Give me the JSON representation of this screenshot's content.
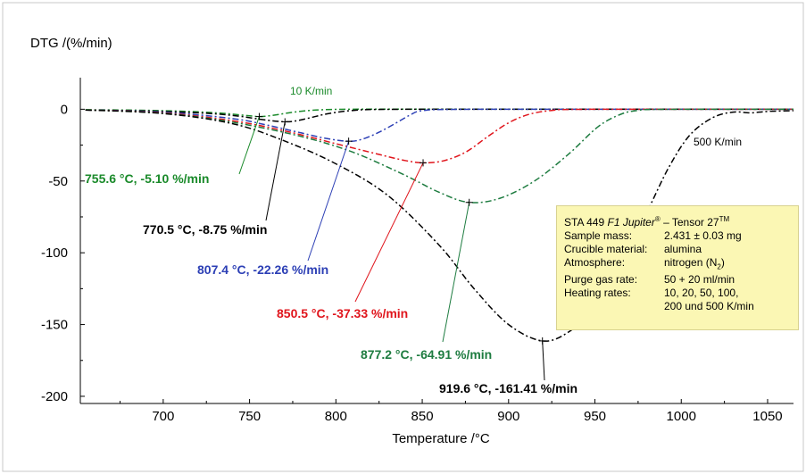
{
  "colors": {
    "black": "#000000",
    "green": "#1a8a2a",
    "blue": "#2c3fb5",
    "red": "#e0151c",
    "teal": "#1e7c40",
    "box_bg": "#fbf7b4"
  },
  "chart_data": {
    "type": "line",
    "title": "",
    "ylabel": "DTG /(%/min)",
    "xlabel": "Temperature /°C",
    "xlim": [
      652,
      1065
    ],
    "ylim": [
      -205,
      22
    ],
    "xticks": [
      700,
      750,
      800,
      850,
      900,
      950,
      1000,
      1050
    ],
    "yticks": [
      0,
      -50,
      -100,
      -150,
      -200
    ],
    "grid": false,
    "series": [
      {
        "name": "10 K/min",
        "color": "#1a8a2a",
        "x": [
          655,
          680,
          700,
          720,
          735,
          745,
          752,
          755.6,
          760,
          767,
          775,
          785,
          800,
          830,
          880,
          940,
          1000,
          1065
        ],
        "y": [
          -0.3,
          -0.6,
          -1.0,
          -1.8,
          -2.9,
          -4.0,
          -4.8,
          -5.1,
          -4.8,
          -3.6,
          -2.1,
          -0.8,
          -0.1,
          0.1,
          0.1,
          0.1,
          0.1,
          0.1
        ]
      },
      {
        "name": "20 K/min",
        "color": "#000000",
        "x": [
          655,
          690,
          720,
          740,
          755,
          765,
          770.5,
          776,
          785,
          795,
          810,
          830,
          900,
          1000,
          1065
        ],
        "y": [
          -0.5,
          -1.2,
          -2.5,
          -4.3,
          -6.8,
          -8.3,
          -8.75,
          -8.3,
          -6.0,
          -3.2,
          -0.8,
          -0.1,
          0.0,
          0.0,
          0.0
        ]
      },
      {
        "name": "50 K/min",
        "color": "#2c3fb5",
        "x": [
          655,
          700,
          740,
          760,
          780,
          795,
          807.4,
          815,
          825,
          835,
          843,
          850,
          870,
          950,
          1065
        ],
        "y": [
          -0.5,
          -2.0,
          -6.5,
          -11.0,
          -16.5,
          -20.5,
          -22.26,
          -21.0,
          -16.0,
          -9.5,
          -4.0,
          -1.0,
          -0.1,
          0.0,
          0.0
        ]
      },
      {
        "name": "100 K/min",
        "color": "#e0151c",
        "x": [
          655,
          700,
          740,
          770,
          800,
          825,
          840,
          850.5,
          862,
          875,
          888,
          900,
          912,
          925,
          940,
          1000,
          1065
        ],
        "y": [
          -0.5,
          -2.5,
          -8.0,
          -15.0,
          -24.0,
          -31.5,
          -35.7,
          -37.33,
          -36.0,
          -30.0,
          -19.0,
          -9.5,
          -3.5,
          -0.8,
          -0.1,
          0.0,
          0.0
        ]
      },
      {
        "name": "200 K/min",
        "color": "#1e7c40",
        "x": [
          655,
          700,
          740,
          780,
          810,
          840,
          860,
          877.2,
          895,
          915,
          935,
          952,
          965,
          975,
          990,
          1065
        ],
        "y": [
          -0.5,
          -2.8,
          -9.0,
          -19.0,
          -30.0,
          -46.0,
          -58.0,
          -64.91,
          -62.0,
          -50.0,
          -31.0,
          -12.0,
          -3.5,
          -0.8,
          -0.1,
          0.0
        ]
      },
      {
        "name": "500 K/min",
        "color": "#000000",
        "x": [
          655,
          700,
          740,
          770,
          800,
          830,
          860,
          880,
          900,
          919.6,
          935,
          950,
          965,
          980,
          993,
          1005,
          1018,
          1030,
          1040,
          1050,
          1065
        ],
        "y": [
          -0.5,
          -3.0,
          -10.0,
          -22.0,
          -38.0,
          -60.0,
          -95.0,
          -125.0,
          -150.0,
          -161.41,
          -155.0,
          -138.0,
          -108.0,
          -72.0,
          -40.0,
          -18.0,
          -6.0,
          -2.0,
          -2.5,
          -1.5,
          -1.0
        ]
      }
    ],
    "annotations": [
      {
        "text": "10 K/min",
        "color": "#1a8a2a"
      },
      {
        "text": "500 K/min",
        "color": "#000000"
      },
      {
        "text": "755.6 °C, -5.10 %/min",
        "x": 755.6,
        "y": -5.1,
        "color": "#1a8a2a"
      },
      {
        "text": "770.5 °C, -8.75 %/min",
        "x": 770.5,
        "y": -8.75,
        "color": "#000000"
      },
      {
        "text": "807.4 °C, -22.26 %/min",
        "x": 807.4,
        "y": -22.26,
        "color": "#2c3fb5"
      },
      {
        "text": "850.5 °C, -37.33 %/min",
        "x": 850.5,
        "y": -37.33,
        "color": "#e0151c"
      },
      {
        "text": "877.2 °C, -64.91 %/min",
        "x": 877.2,
        "y": -64.91,
        "color": "#1e7c40"
      },
      {
        "text": "919.6 °C, -161.41 %/min",
        "x": 919.6,
        "y": -161.41,
        "color": "#000000"
      }
    ]
  },
  "infobox": {
    "title_main": "STA 449 ",
    "title_italic": "F1 Jupiter",
    "title_reg": "®",
    "title_rest": " – Tensor 27",
    "title_tm": "TM",
    "rows": [
      {
        "key": "Sample mass:",
        "value": "2.431 ± 0.03 mg"
      },
      {
        "key": "Crucible material:",
        "value": "alumina"
      },
      {
        "key": "Atmosphere:",
        "value_pre": "nitrogen (N",
        "value_sub": "2",
        "value_post": ")"
      },
      {
        "key": "Purge gas rate:",
        "value": "50 + 20 ml/min"
      },
      {
        "key": "Heating rates:",
        "value": "10, 20, 50, 100,"
      },
      {
        "key": "",
        "value": "200 und 500 K/min"
      }
    ]
  }
}
